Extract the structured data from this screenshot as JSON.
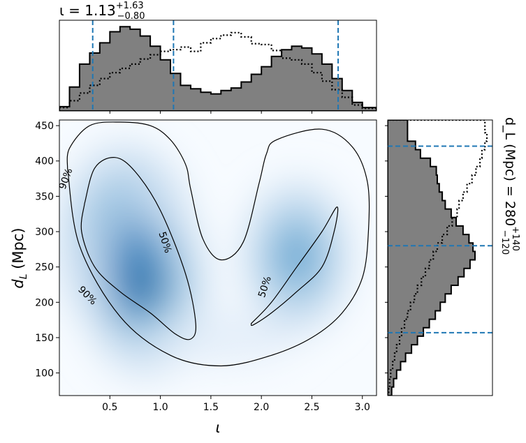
{
  "chart_data": [
    {
      "type": "heatmap",
      "panel": "joint",
      "description_kind": "2D posterior density with credible-region contours",
      "xlabel": "ι",
      "ylabel": "d_L (Mpc)",
      "xlim": [
        0.0,
        3.14
      ],
      "ylim": [
        68,
        458
      ],
      "xticks": [
        0.5,
        1.0,
        1.5,
        2.0,
        2.5,
        3.0
      ],
      "xtick_labels": [
        "0.5",
        "1.0",
        "1.5",
        "2.0",
        "2.5",
        "3.0"
      ],
      "yticks": [
        100,
        150,
        200,
        250,
        300,
        350,
        400,
        450
      ],
      "ytick_labels": [
        "100",
        "150",
        "200",
        "250",
        "300",
        "350",
        "400",
        "450"
      ],
      "colormap": "Blues",
      "density_peaks": [
        {
          "x": 0.65,
          "y": 285,
          "relative_density": 1.0
        },
        {
          "x": 0.85,
          "y": 225,
          "relative_density": 0.9
        },
        {
          "x": 2.35,
          "y": 265,
          "relative_density": 0.7
        }
      ],
      "contours": [
        {
          "label": "50%",
          "regions": [
            {
              "x": [
                0.25,
                0.35,
                0.55,
                0.75,
                1.0,
                1.25,
                1.35,
                1.3,
                1.15,
                0.9,
                0.6,
                0.35,
                0.22,
                0.25
              ],
              "y": [
                340,
                390,
                405,
                385,
                330,
                240,
                170,
                148,
                155,
                185,
                215,
                250,
                300,
                340
              ]
            },
            {
              "x": [
                1.9,
                2.1,
                2.35,
                2.6,
                2.75,
                2.72,
                2.6,
                2.35,
                2.1,
                1.92,
                1.9
              ],
              "y": [
                170,
                200,
                250,
                300,
                335,
                300,
                250,
                215,
                185,
                168,
                170
              ]
            }
          ]
        },
        {
          "label": "90%",
          "regions": [
            {
              "x": [
                0.08,
                0.1,
                0.3,
                0.6,
                0.9,
                1.1,
                1.25,
                1.3,
                1.42,
                1.6,
                1.82,
                1.98,
                2.05,
                2.15,
                2.6,
                2.9,
                3.05,
                3.06,
                3.0,
                2.8,
                2.5,
                2.1,
                1.6,
                1.1,
                0.6,
                0.2,
                0.08
              ],
              "y": [
                390,
                418,
                450,
                455,
                450,
                430,
                395,
                360,
                290,
                260,
                285,
                370,
                410,
                430,
                445,
                420,
                370,
                300,
                235,
                185,
                150,
                125,
                110,
                125,
                180,
                280,
                390
              ]
            }
          ]
        }
      ]
    },
    {
      "type": "histogram",
      "panel": "top-marginal",
      "title": "ι = 1.13",
      "title_sup": "+1.63",
      "title_sub": "−0.80",
      "xlim": [
        0.0,
        3.14
      ],
      "bin_edges": [
        0.0,
        0.1,
        0.2,
        0.3,
        0.4,
        0.5,
        0.6,
        0.7,
        0.8,
        0.9,
        1.0,
        1.1,
        1.2,
        1.3,
        1.4,
        1.5,
        1.6,
        1.7,
        1.8,
        1.9,
        2.0,
        2.1,
        2.2,
        2.3,
        2.4,
        2.5,
        2.6,
        2.7,
        2.8,
        2.9,
        3.0,
        3.14
      ],
      "series": [
        {
          "name": "posterior",
          "style": "filled-step",
          "values": [
            0.05,
            0.28,
            0.55,
            0.68,
            0.8,
            0.93,
            0.99,
            0.96,
            0.88,
            0.76,
            0.6,
            0.44,
            0.3,
            0.26,
            0.22,
            0.2,
            0.24,
            0.27,
            0.34,
            0.43,
            0.52,
            0.64,
            0.72,
            0.76,
            0.74,
            0.67,
            0.55,
            0.38,
            0.24,
            0.1,
            0.04
          ]
        },
        {
          "name": "prior",
          "style": "dotted-step",
          "values": [
            0.04,
            0.12,
            0.21,
            0.3,
            0.38,
            0.45,
            0.5,
            0.55,
            0.61,
            0.66,
            0.7,
            0.72,
            0.75,
            0.7,
            0.8,
            0.85,
            0.89,
            0.92,
            0.87,
            0.79,
            0.78,
            0.71,
            0.62,
            0.6,
            0.55,
            0.45,
            0.35,
            0.25,
            0.16,
            0.07,
            0.03
          ]
        }
      ],
      "markers": [
        {
          "x": 0.33,
          "style": "dashed",
          "color": "#1f77b4"
        },
        {
          "x": 1.13,
          "style": "dashed",
          "color": "#1f77b4"
        },
        {
          "x": 2.76,
          "style": "dashed",
          "color": "#1f77b4"
        }
      ]
    },
    {
      "type": "histogram",
      "panel": "right-marginal",
      "orientation": "horizontal",
      "title": "d_L (Mpc) = 280",
      "title_sup": "+140",
      "title_sub": "−120",
      "ylim": [
        68,
        458
      ],
      "bin_edges": [
        68,
        80,
        92,
        104,
        116,
        128,
        140,
        152,
        164,
        176,
        188,
        200,
        212,
        224,
        236,
        248,
        260,
        272,
        284,
        296,
        308,
        320,
        332,
        344,
        356,
        368,
        380,
        392,
        404,
        416,
        428,
        440,
        458
      ],
      "series": [
        {
          "name": "posterior",
          "style": "filled-step",
          "values": [
            0.04,
            0.06,
            0.09,
            0.13,
            0.18,
            0.24,
            0.3,
            0.36,
            0.42,
            0.48,
            0.53,
            0.58,
            0.64,
            0.71,
            0.77,
            0.83,
            0.88,
            0.86,
            0.82,
            0.76,
            0.69,
            0.64,
            0.58,
            0.55,
            0.52,
            0.5,
            0.49,
            0.43,
            0.33,
            0.28,
            0.2,
            0.2
          ]
        },
        {
          "name": "prior",
          "style": "dotted-step",
          "values": [
            0.01,
            0.02,
            0.03,
            0.05,
            0.07,
            0.09,
            0.12,
            0.14,
            0.17,
            0.2,
            0.23,
            0.27,
            0.3,
            0.34,
            0.38,
            0.42,
            0.46,
            0.5,
            0.55,
            0.6,
            0.65,
            0.7,
            0.72,
            0.76,
            0.8,
            0.85,
            0.89,
            0.93,
            0.95,
            0.98,
            1.0,
            0.98
          ]
        }
      ],
      "markers": [
        {
          "y": 157,
          "style": "dashed",
          "color": "#1f77b4"
        },
        {
          "y": 280,
          "style": "dashed",
          "color": "#1f77b4"
        },
        {
          "y": 421,
          "style": "dashed",
          "color": "#1f77b4"
        }
      ]
    }
  ]
}
